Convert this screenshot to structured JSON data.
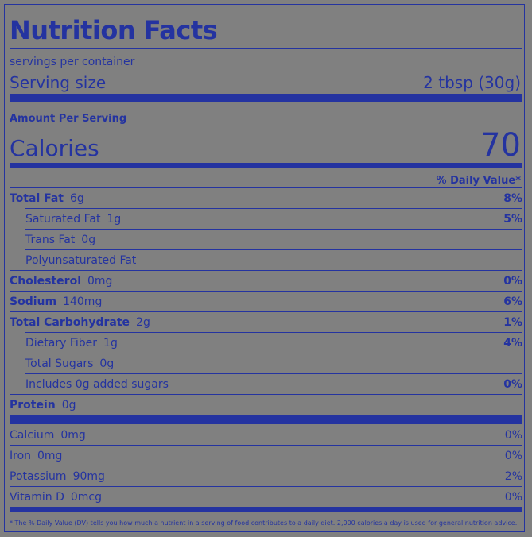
{
  "title": "Nutrition Facts",
  "servings_per_container": "servings per container",
  "serving_size_label": "Serving size",
  "serving_size_value": "2 tbsp (30g)",
  "amount_per_serving": "Amount Per Serving",
  "calories_label": "Calories",
  "calories_value": "70",
  "daily_value_header": "% Daily Value*",
  "nutrients": [
    {
      "name": "Total Fat",
      "amount": "6g",
      "dv": "8%"
    },
    {
      "name": "Saturated Fat",
      "amount": "1g",
      "dv": "5%"
    },
    {
      "name": "Trans Fat",
      "amount": "0g",
      "dv": ""
    },
    {
      "name": "Polyunsaturated Fat",
      "amount": "",
      "dv": ""
    },
    {
      "name": "Cholesterol",
      "amount": "0mg",
      "dv": "0%"
    },
    {
      "name": "Sodium",
      "amount": "140mg",
      "dv": "6%"
    },
    {
      "name": "Total Carbohydrate",
      "amount": "2g",
      "dv": "1%"
    },
    {
      "name": "Dietary Fiber",
      "amount": "1g",
      "dv": "4%"
    },
    {
      "name": "Total Sugars",
      "amount": "0g",
      "dv": ""
    },
    {
      "name": "Includes 0g added sugars",
      "amount": "",
      "dv": "0%"
    },
    {
      "name": "Protein",
      "amount": "0g",
      "dv": ""
    }
  ],
  "vitamins": [
    {
      "name": "Calcium",
      "amount": "0mg",
      "dv": "0%"
    },
    {
      "name": "Iron",
      "amount": "0mg",
      "dv": "0%"
    },
    {
      "name": "Potassium",
      "amount": "90mg",
      "dv": "2%"
    },
    {
      "name": "Vitamin D",
      "amount": "0mcg",
      "dv": "0%"
    }
  ],
  "footnote": "* The % Daily Value (DV) tells you how much a nutrient in a serving of food contributes to a daily diet. 2,000 calories a day is used for general nutrition advice.",
  "colors": {
    "ink": "#2433a0",
    "background": "#808080"
  }
}
